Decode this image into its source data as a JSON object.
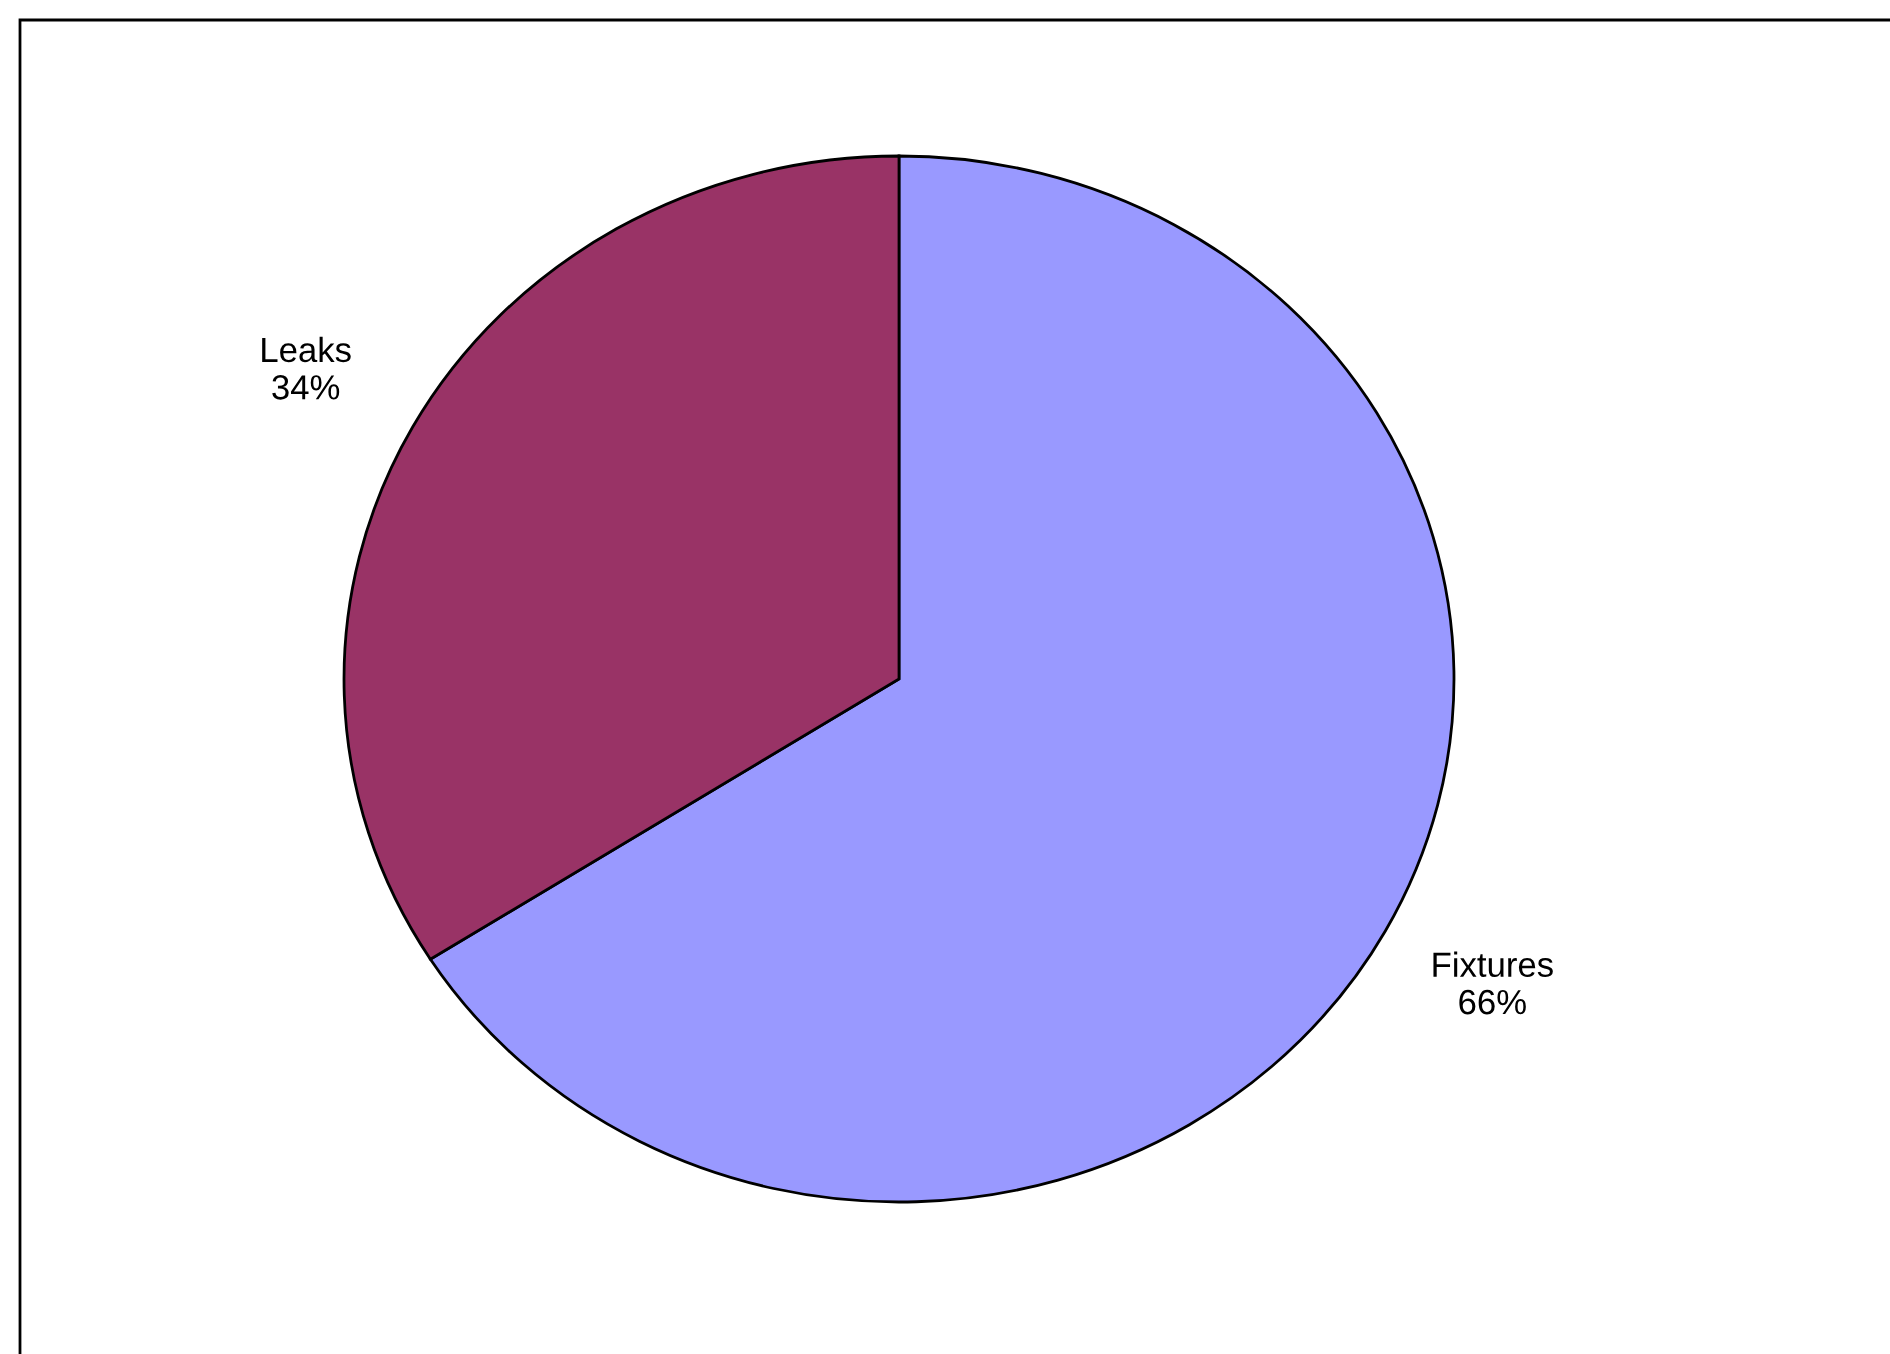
{
  "chart_data": {
    "type": "pie",
    "categories": [
      "Fixtures",
      "Leaks"
    ],
    "values": [
      66,
      34
    ],
    "value_labels": [
      "66%",
      "34%"
    ],
    "colors": [
      "#9999ff",
      "#993366"
    ]
  }
}
